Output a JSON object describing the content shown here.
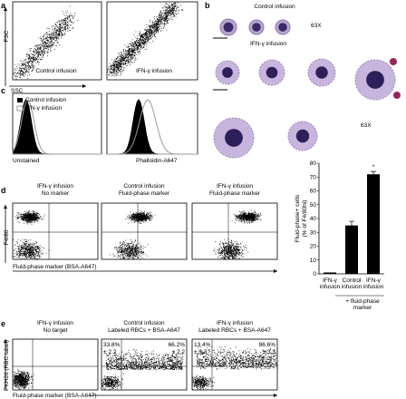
{
  "panel_a": {
    "label": "a",
    "y_axis": "FSC",
    "x_axis": "SSC",
    "plots": [
      "Control infusion",
      "IFN-γ infusion"
    ]
  },
  "panel_b": {
    "label": "b",
    "title_top": "Control infusion",
    "mag_top": "63X",
    "title_bottom": "IFN-γ infusion",
    "mag_bottom": "63X"
  },
  "panel_c": {
    "label": "c",
    "legend": [
      "Control infusion",
      "IFN-γ infusion"
    ],
    "x_labels": [
      "Unstained",
      "Phalloidin-A647"
    ]
  },
  "panel_d": {
    "label": "d",
    "plots": [
      [
        "IFN-γ infusion",
        "No marker"
      ],
      [
        "Control infusion",
        "Fluid-phase marker"
      ],
      [
        "IFN-γ infusion",
        "Fluid-phase marker"
      ]
    ],
    "y_axis": "F4/80",
    "x_axis": "Fluid-phase marker (BSA-A647)",
    "chart": {
      "type": "bar",
      "y_label": [
        "Fluid-phase+ cells",
        "(% of F4/80hi)"
      ],
      "categories": [
        [
          "IFN-γ",
          "infusion"
        ],
        [
          "Control",
          "infusion"
        ],
        [
          "IFN-γ",
          "infusion"
        ]
      ],
      "values": [
        1,
        35,
        72
      ],
      "errors": [
        0,
        3,
        2
      ],
      "color": "#000000",
      "ylim": [
        0,
        80
      ],
      "yticks": [
        0,
        10,
        20,
        30,
        40,
        50,
        60,
        70,
        80
      ],
      "significance": "*",
      "group_label": [
        "+ fluid-phase",
        "marker"
      ]
    }
  },
  "panel_e": {
    "label": "e",
    "plots": [
      [
        "IFN-γ infusion",
        "No target"
      ],
      [
        "Control infusion",
        "Labeled RBCs + BSA-A647"
      ],
      [
        "IFN-γ infusion",
        "Labeled RBCs + BSA-A647"
      ]
    ],
    "y_axis": "PKH26 (RBC label)",
    "x_axis": "Fluid-phase marker (BSA-A647)",
    "quadrants": [
      [
        [
          "33.8%",
          "± 2.2"
        ],
        [
          "66.2%",
          "± 2.2"
        ]
      ],
      [
        [
          "13.4%",
          "± 3.3"
        ],
        [
          "86.6%",
          "± 3.3"
        ]
      ]
    ]
  }
}
